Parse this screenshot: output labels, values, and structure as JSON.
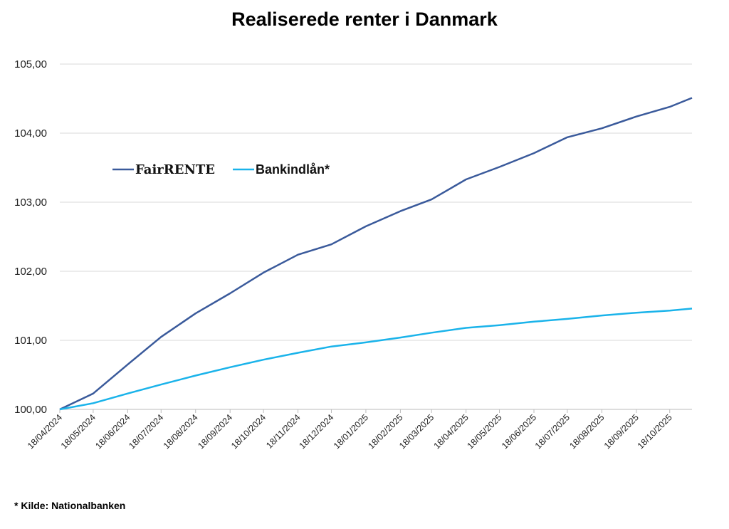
{
  "chart_data": {
    "type": "line",
    "title": "Realiserede renter i Danmark",
    "xlabel": "",
    "ylabel": "",
    "ylim": [
      100,
      105
    ],
    "yticks": [
      "100,00",
      "101,00",
      "102,00",
      "103,00",
      "104,00",
      "105,00"
    ],
    "xticks": [
      "18/04/2024",
      "18/05/2024",
      "18/06/2024",
      "18/07/2024",
      "18/08/2024",
      "18/09/2024",
      "18/10/2024",
      "18/11/2024",
      "18/12/2024",
      "18/01/2025",
      "18/02/2025",
      "18/03/2025",
      "18/04/2025",
      "18/05/2025",
      "18/06/2025",
      "18/07/2025",
      "18/08/2025",
      "18/09/2025",
      "18/10/2025"
    ],
    "grid": "horizontal",
    "legend_position": "upper-left",
    "x": [
      "2024-04-18",
      "2024-05-18",
      "2024-06-18",
      "2024-07-18",
      "2024-08-18",
      "2024-09-18",
      "2024-10-18",
      "2024-11-18",
      "2024-12-18",
      "2025-01-18",
      "2025-02-18",
      "2025-03-18",
      "2025-04-18",
      "2025-05-18",
      "2025-06-18",
      "2025-07-18",
      "2025-08-18",
      "2025-09-18",
      "2025-10-18",
      "2025-11-07"
    ],
    "series": [
      {
        "name": "FairRENTE",
        "color": "#3a5a9b",
        "values": [
          100.0,
          100.23,
          100.65,
          101.05,
          101.39,
          101.68,
          101.98,
          102.24,
          102.39,
          102.65,
          102.87,
          103.04,
          103.33,
          103.51,
          103.71,
          103.94,
          104.07,
          104.24,
          104.38,
          104.51
        ]
      },
      {
        "name": "Bankindlån*",
        "color": "#1ab3ea",
        "values": [
          100.0,
          100.09,
          100.23,
          100.36,
          100.49,
          100.61,
          100.72,
          100.82,
          100.91,
          100.97,
          101.04,
          101.11,
          101.18,
          101.22,
          101.27,
          101.31,
          101.36,
          101.4,
          101.43,
          101.46
        ]
      }
    ]
  },
  "footer": {
    "source": "* Kilde: Nationalbanken"
  }
}
